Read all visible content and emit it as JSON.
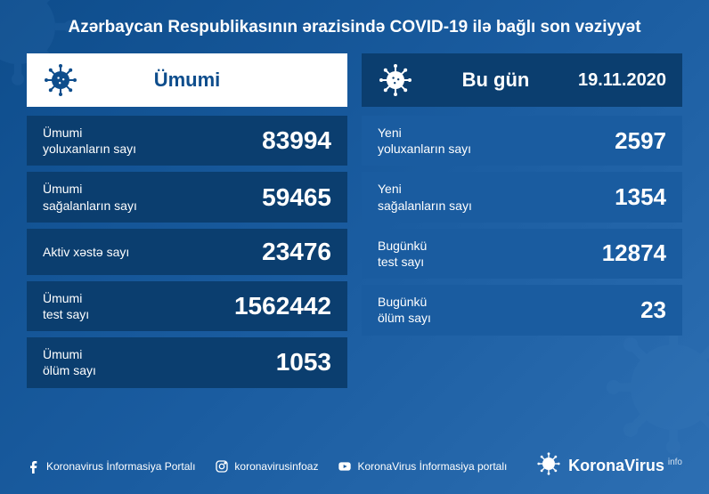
{
  "title": "Azərbaycan Respublikasının ərazisində COVID-19 ilə bağlı son vəziyyət",
  "colors": {
    "bg_gradient_start": "#0e4d8c",
    "bg_gradient_end": "#2d6fb3",
    "left_header_bg": "#ffffff",
    "left_header_text": "#0e4d8c",
    "right_header_bg": "#0b3e6f",
    "left_row_bg": "#0b3e6f",
    "right_row_bg": "#1a5ca0",
    "text": "#ffffff",
    "virus_icon": "#0e4d8c"
  },
  "left_panel": {
    "header": "Ümumi",
    "rows": [
      {
        "label": "Ümumi\nyoluxanların sayı",
        "value": "83994"
      },
      {
        "label": "Ümumi\nsağalanların sayı",
        "value": "59465"
      },
      {
        "label": "Aktiv xəstə sayı",
        "value": "23476"
      },
      {
        "label": "Ümumi\ntest sayı",
        "value": "1562442"
      },
      {
        "label": "Ümumi\nölüm sayı",
        "value": "1053"
      }
    ]
  },
  "right_panel": {
    "header": "Bu gün",
    "date": "19.11.2020",
    "rows": [
      {
        "label": "Yeni\nyoluxanların sayı",
        "value": "2597"
      },
      {
        "label": "Yeni\nsağalanların sayı",
        "value": "1354"
      },
      {
        "label": "Bugünkü\ntest sayı",
        "value": "12874"
      },
      {
        "label": "Bugünkü\nölüm sayı",
        "value": "23"
      }
    ]
  },
  "footer": {
    "facebook": "Koronavirus İnformasiya Portalı",
    "instagram": "koronavirusinfoaz",
    "youtube": "KoronaVirus İnformasiya portalı",
    "brand": "KoronaVirus",
    "brand_suffix": "info"
  }
}
